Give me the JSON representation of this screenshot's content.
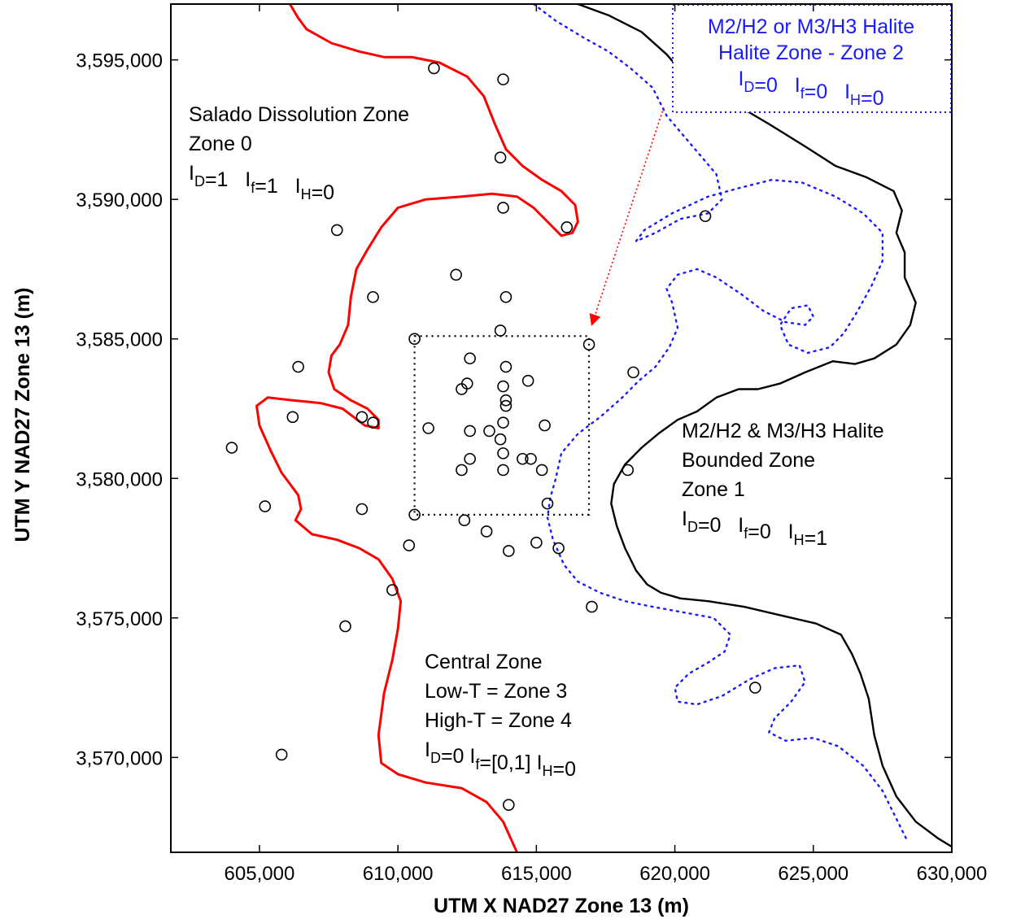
{
  "chart_data": {
    "type": "scatter",
    "title": "",
    "xlabel": "UTM X NAD27 Zone 13 (m)",
    "ylabel": "UTM Y NAD27 Zone 13 (m)",
    "xlim": [
      601800,
      630000
    ],
    "ylim": [
      3566600,
      3597000
    ],
    "x_ticks": [
      605000,
      610000,
      615000,
      620000,
      625000,
      630000
    ],
    "x_tick_labels": [
      "605,000",
      "610,000",
      "615,000",
      "620,000",
      "625,000",
      "630,000"
    ],
    "y_ticks": [
      3570000,
      3575000,
      3580000,
      3585000,
      3590000,
      3595000
    ],
    "y_tick_labels": [
      "3,570,000",
      "3,575,000",
      "3,580,000",
      "3,585,000",
      "3,590,000",
      "3,595,000"
    ],
    "grid": false,
    "colors": {
      "salado_boundary": "#ff0000",
      "halite_boundary": "#000000",
      "zone2_boundary": "#1a1aff",
      "arrow": "#ff0000",
      "wells": "#000000"
    },
    "zone_labels": [
      {
        "key": "zone0",
        "lines": [
          {
            "segments": [
              {
                "t": "Salado Dissolution Zone"
              }
            ]
          },
          {
            "segments": [
              {
                "t": "Zone 0"
              }
            ]
          },
          {
            "segments": [
              {
                "t": "I"
              },
              {
                "t": "D",
                "sub": true
              },
              {
                "t": "=1   "
              },
              {
                "t": "I"
              },
              {
                "t": "f",
                "sub": true
              },
              {
                "t": "=1   "
              },
              {
                "t": "I"
              },
              {
                "t": "H",
                "sub": true
              },
              {
                "t": "=0"
              }
            ]
          }
        ]
      },
      {
        "key": "zone2",
        "color": "blue",
        "lines": [
          {
            "segments": [
              {
                "t": "M2/H2 or M3/H3 Halite"
              }
            ]
          },
          {
            "segments": [
              {
                "t": "Halite Zone - Zone 2"
              }
            ]
          },
          {
            "segments": [
              {
                "t": "I"
              },
              {
                "t": "D",
                "sub": true
              },
              {
                "t": "=0   "
              },
              {
                "t": "I"
              },
              {
                "t": "f",
                "sub": true
              },
              {
                "t": "=0   "
              },
              {
                "t": "I"
              },
              {
                "t": "H",
                "sub": true
              },
              {
                "t": "=0"
              }
            ]
          }
        ]
      },
      {
        "key": "zone1",
        "lines": [
          {
            "segments": [
              {
                "t": "M2/H2 & M3/H3 Halite"
              }
            ]
          },
          {
            "segments": [
              {
                "t": "Bounded Zone"
              }
            ]
          },
          {
            "segments": [
              {
                "t": "Zone 1"
              }
            ]
          },
          {
            "segments": [
              {
                "t": "I"
              },
              {
                "t": "D",
                "sub": true
              },
              {
                "t": "=0   "
              },
              {
                "t": "I"
              },
              {
                "t": "f",
                "sub": true
              },
              {
                "t": "=0   "
              },
              {
                "t": "I"
              },
              {
                "t": "H",
                "sub": true
              },
              {
                "t": "=1"
              }
            ]
          }
        ]
      },
      {
        "key": "central",
        "lines": [
          {
            "segments": [
              {
                "t": "Central Zone"
              }
            ]
          },
          {
            "segments": [
              {
                "t": "Low-T = Zone 3"
              }
            ]
          },
          {
            "segments": [
              {
                "t": "High-T = Zone 4"
              }
            ]
          },
          {
            "segments": [
              {
                "t": "I"
              },
              {
                "t": "D",
                "sub": true
              },
              {
                "t": "=0 "
              },
              {
                "t": "I"
              },
              {
                "t": "f",
                "sub": true
              },
              {
                "t": "=[0,1] "
              },
              {
                "t": "I"
              },
              {
                "t": "H",
                "sub": true
              },
              {
                "t": "=0"
              }
            ]
          }
        ]
      }
    ],
    "central_box": {
      "x": [
        610600,
        616900
      ],
      "y": [
        3578700,
        3585100
      ]
    },
    "arrow": {
      "from": [
        619600,
        3593300
      ],
      "to": [
        617000,
        3585500
      ]
    },
    "wells": [
      [
        611300,
        3594700
      ],
      [
        613800,
        3594300
      ],
      [
        613700,
        3591500
      ],
      [
        613800,
        3589700
      ],
      [
        616100,
        3589000
      ],
      [
        607800,
        3588900
      ],
      [
        621100,
        3589400
      ],
      [
        612100,
        3587300
      ],
      [
        609100,
        3586500
      ],
      [
        613900,
        3586500
      ],
      [
        613700,
        3585300
      ],
      [
        610600,
        3585000
      ],
      [
        616900,
        3584800
      ],
      [
        606400,
        3584000
      ],
      [
        612600,
        3584300
      ],
      [
        613900,
        3584000
      ],
      [
        613800,
        3583300
      ],
      [
        614700,
        3583500
      ],
      [
        612500,
        3583400
      ],
      [
        612300,
        3583200
      ],
      [
        618500,
        3583800
      ],
      [
        613900,
        3582800
      ],
      [
        613900,
        3582600
      ],
      [
        613800,
        3582000
      ],
      [
        606200,
        3582200
      ],
      [
        608700,
        3582200
      ],
      [
        609100,
        3582000
      ],
      [
        611100,
        3581800
      ],
      [
        612600,
        3581700
      ],
      [
        613300,
        3581700
      ],
      [
        613700,
        3581400
      ],
      [
        615300,
        3581900
      ],
      [
        604000,
        3581100
      ],
      [
        613800,
        3580900
      ],
      [
        612600,
        3580700
      ],
      [
        614500,
        3580700
      ],
      [
        614800,
        3580700
      ],
      [
        612300,
        3580300
      ],
      [
        613800,
        3580300
      ],
      [
        615200,
        3580300
      ],
      [
        618300,
        3580300
      ],
      [
        605200,
        3579000
      ],
      [
        608700,
        3578900
      ],
      [
        610600,
        3578700
      ],
      [
        615400,
        3579100
      ],
      [
        612400,
        3578500
      ],
      [
        613200,
        3578100
      ],
      [
        610400,
        3577600
      ],
      [
        614000,
        3577400
      ],
      [
        615000,
        3577700
      ],
      [
        615800,
        3577500
      ],
      [
        609800,
        3576000
      ],
      [
        617000,
        3575400
      ],
      [
        608100,
        3574700
      ],
      [
        622900,
        3572500
      ],
      [
        605800,
        3570100
      ],
      [
        614000,
        3568300
      ]
    ],
    "red_boundary_upper": [
      [
        606100,
        3597000
      ],
      [
        606400,
        3596500
      ],
      [
        606700,
        3596100
      ],
      [
        607600,
        3595600
      ],
      [
        608600,
        3595300
      ],
      [
        609500,
        3595100
      ],
      [
        610500,
        3595100
      ],
      [
        611500,
        3594900
      ],
      [
        612500,
        3594400
      ],
      [
        613100,
        3593700
      ],
      [
        613500,
        3592700
      ],
      [
        613900,
        3591800
      ],
      [
        614500,
        3591200
      ],
      [
        615200,
        3590700
      ],
      [
        615900,
        3590300
      ],
      [
        616400,
        3589800
      ],
      [
        616500,
        3589200
      ],
      [
        616300,
        3588800
      ],
      [
        615900,
        3588700
      ],
      [
        615500,
        3589100
      ],
      [
        614900,
        3589700
      ],
      [
        614300,
        3590100
      ],
      [
        613400,
        3590200
      ],
      [
        612300,
        3590100
      ],
      [
        611000,
        3590000
      ],
      [
        610000,
        3589700
      ],
      [
        609400,
        3589000
      ],
      [
        608900,
        3588200
      ],
      [
        608500,
        3587500
      ],
      [
        608300,
        3586500
      ],
      [
        608200,
        3585500
      ],
      [
        607900,
        3584800
      ],
      [
        607600,
        3584400
      ],
      [
        607500,
        3583800
      ],
      [
        607700,
        3583200
      ],
      [
        608300,
        3582800
      ],
      [
        608900,
        3582500
      ],
      [
        609300,
        3582100
      ],
      [
        609300,
        3581800
      ],
      [
        608800,
        3581900
      ],
      [
        608000,
        3582500
      ],
      [
        607200,
        3582700
      ],
      [
        606200,
        3582800
      ],
      [
        605300,
        3582900
      ],
      [
        604900,
        3582600
      ],
      [
        605000,
        3581900
      ],
      [
        605400,
        3581000
      ],
      [
        605800,
        3580200
      ],
      [
        606400,
        3579400
      ],
      [
        606500,
        3578900
      ],
      [
        606300,
        3578500
      ],
      [
        606900,
        3578000
      ],
      [
        607800,
        3577800
      ],
      [
        608600,
        3577500
      ],
      [
        609300,
        3577100
      ],
      [
        609800,
        3576400
      ],
      [
        610100,
        3575600
      ],
      [
        610000,
        3574600
      ],
      [
        609800,
        3573500
      ],
      [
        609500,
        3572300
      ],
      [
        609300,
        3570800
      ],
      [
        609400,
        3569800
      ],
      [
        610000,
        3569400
      ],
      [
        611000,
        3569100
      ],
      [
        612300,
        3568900
      ],
      [
        613200,
        3568400
      ],
      [
        613800,
        3567700
      ],
      [
        614300,
        3566600
      ]
    ],
    "black_boundary": [
      [
        616500,
        3597000
      ],
      [
        617600,
        3596600
      ],
      [
        618800,
        3596000
      ],
      [
        619700,
        3595200
      ],
      [
        620400,
        3594400
      ],
      [
        621100,
        3594000
      ],
      [
        622200,
        3593400
      ],
      [
        623400,
        3592700
      ],
      [
        624700,
        3591900
      ],
      [
        625800,
        3591200
      ],
      [
        626900,
        3590800
      ],
      [
        627900,
        3590300
      ],
      [
        628200,
        3589600
      ],
      [
        628000,
        3588800
      ],
      [
        628300,
        3588100
      ],
      [
        628300,
        3587200
      ],
      [
        628700,
        3586300
      ],
      [
        628500,
        3585500
      ],
      [
        628000,
        3584800
      ],
      [
        627200,
        3584300
      ],
      [
        626500,
        3584100
      ],
      [
        625700,
        3584200
      ],
      [
        624700,
        3583800
      ],
      [
        623800,
        3583400
      ],
      [
        623000,
        3583200
      ],
      [
        622300,
        3583200
      ],
      [
        621500,
        3582900
      ],
      [
        620800,
        3582400
      ],
      [
        620100,
        3582100
      ],
      [
        619400,
        3581600
      ],
      [
        618800,
        3581100
      ],
      [
        618200,
        3580500
      ],
      [
        617800,
        3579800
      ],
      [
        617700,
        3579100
      ],
      [
        617900,
        3578300
      ],
      [
        618200,
        3577500
      ],
      [
        618600,
        3576700
      ],
      [
        619000,
        3576200
      ],
      [
        619500,
        3575900
      ],
      [
        620200,
        3575700
      ],
      [
        621200,
        3575600
      ],
      [
        622500,
        3575400
      ],
      [
        623800,
        3575100
      ],
      [
        625100,
        3574800
      ],
      [
        626000,
        3574400
      ],
      [
        626400,
        3573700
      ],
      [
        626700,
        3573000
      ],
      [
        627000,
        3572100
      ],
      [
        627200,
        3570800
      ],
      [
        627500,
        3569700
      ],
      [
        628000,
        3568600
      ],
      [
        628700,
        3567700
      ],
      [
        629500,
        3567100
      ],
      [
        630000,
        3566800
      ]
    ],
    "blue_outer_boundary": [
      [
        614900,
        3597000
      ],
      [
        615700,
        3596400
      ],
      [
        616700,
        3595800
      ],
      [
        617600,
        3595300
      ],
      [
        618400,
        3594700
      ],
      [
        619200,
        3594000
      ],
      [
        619700,
        3593000
      ],
      [
        620300,
        3592300
      ],
      [
        620900,
        3591600
      ],
      [
        621500,
        3590900
      ],
      [
        621700,
        3590000
      ],
      [
        621200,
        3589500
      ],
      [
        620200,
        3589300
      ],
      [
        619300,
        3588800
      ],
      [
        618600,
        3588500
      ],
      [
        618900,
        3588900
      ],
      [
        619900,
        3589500
      ],
      [
        621200,
        3590100
      ],
      [
        622300,
        3590400
      ],
      [
        623500,
        3590700
      ],
      [
        624600,
        3590600
      ],
      [
        625800,
        3590100
      ],
      [
        626800,
        3589500
      ],
      [
        627500,
        3588800
      ],
      [
        627500,
        3587800
      ],
      [
        627100,
        3586900
      ],
      [
        626600,
        3586000
      ],
      [
        626100,
        3585200
      ],
      [
        625600,
        3584700
      ],
      [
        624800,
        3584500
      ],
      [
        624100,
        3584800
      ],
      [
        623800,
        3585500
      ],
      [
        624200,
        3586100
      ],
      [
        624800,
        3586200
      ],
      [
        625000,
        3585800
      ],
      [
        624700,
        3585500
      ],
      [
        624000,
        3585600
      ],
      [
        623200,
        3586000
      ],
      [
        622400,
        3586600
      ],
      [
        621500,
        3587200
      ],
      [
        620800,
        3587500
      ],
      [
        620100,
        3587300
      ],
      [
        619700,
        3586800
      ],
      [
        619900,
        3586300
      ],
      [
        620100,
        3585400
      ],
      [
        619800,
        3584700
      ],
      [
        619300,
        3584000
      ],
      [
        618700,
        3583500
      ],
      [
        618100,
        3582900
      ],
      [
        617300,
        3582200
      ],
      [
        616500,
        3581600
      ],
      [
        615900,
        3580900
      ],
      [
        615700,
        3580000
      ],
      [
        615500,
        3579300
      ],
      [
        615400,
        3578600
      ],
      [
        615600,
        3577800
      ],
      [
        616000,
        3576900
      ],
      [
        616500,
        3576300
      ],
      [
        617300,
        3575900
      ],
      [
        618200,
        3575600
      ],
      [
        619200,
        3575400
      ],
      [
        620300,
        3575200
      ],
      [
        621400,
        3575000
      ],
      [
        622000,
        3574400
      ],
      [
        621800,
        3573800
      ],
      [
        621200,
        3573400
      ],
      [
        620500,
        3573000
      ],
      [
        620000,
        3572500
      ],
      [
        620100,
        3572000
      ],
      [
        620800,
        3571900
      ],
      [
        621700,
        3572200
      ],
      [
        622700,
        3572800
      ],
      [
        623600,
        3573200
      ],
      [
        624500,
        3573300
      ],
      [
        624700,
        3572700
      ],
      [
        624200,
        3572000
      ],
      [
        623600,
        3571400
      ],
      [
        623400,
        3570900
      ],
      [
        624000,
        3570600
      ],
      [
        625000,
        3570700
      ],
      [
        625900,
        3570400
      ],
      [
        626800,
        3569700
      ],
      [
        627500,
        3568800
      ],
      [
        628000,
        3567800
      ],
      [
        628400,
        3567000
      ]
    ]
  }
}
